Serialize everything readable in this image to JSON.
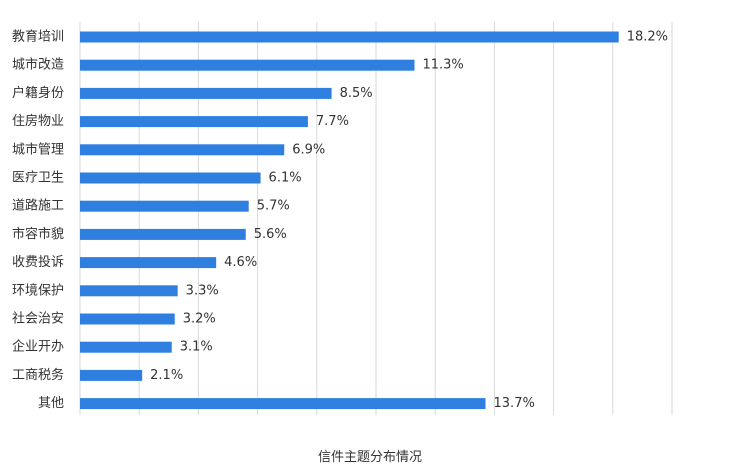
{
  "chart_data": {
    "type": "bar",
    "orientation": "horizontal",
    "categories": [
      "教育培训",
      "城市改造",
      "户籍身份",
      "住房物业",
      "城市管理",
      "医疗卫生",
      "道路施工",
      "市容市貌",
      "收费投诉",
      "环境保护",
      "社会治安",
      "企业开办",
      "工商税务",
      "其他"
    ],
    "values": [
      18.2,
      11.3,
      8.5,
      7.7,
      6.9,
      6.1,
      5.7,
      5.6,
      4.6,
      3.3,
      3.2,
      3.1,
      2.1,
      13.7
    ],
    "value_labels": [
      "18.2%",
      "11.3%",
      "8.5%",
      "7.7%",
      "6.9%",
      "6.1%",
      "5.7%",
      "5.6%",
      "4.6%",
      "3.3%",
      "3.2%",
      "3.1%",
      "2.1%",
      "13.7%"
    ],
    "xlabel": "信件主题分布情况",
    "xlim": [
      0,
      20
    ],
    "grid": true,
    "bar_color": "#2e7fe0"
  }
}
